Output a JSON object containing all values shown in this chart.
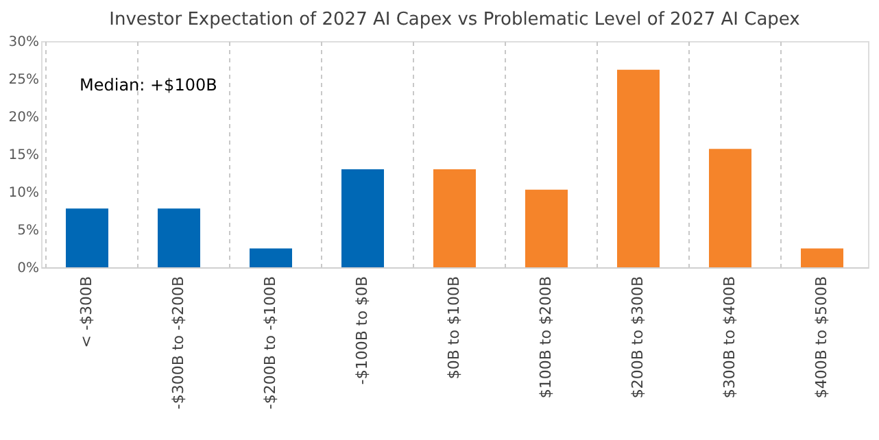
{
  "chart_data": {
    "type": "bar",
    "title": "Investor Expectation of 2027 AI Capex vs Problematic Level of 2027 AI Capex",
    "categories": [
      "< -$300B",
      "-$300B to -$200B",
      "-$200B to -$100B",
      "-$100B to $0B",
      "$0B to $100B",
      "$100B to $200B",
      "$200B to $300B",
      "$300B to $400B",
      "$400B to $500B"
    ],
    "values": [
      7.8,
      7.8,
      2.5,
      13.0,
      13.0,
      10.3,
      26.2,
      15.7,
      2.5
    ],
    "colors": [
      "#0068b5",
      "#0068b5",
      "#0068b5",
      "#0068b5",
      "#f5842a",
      "#f5842a",
      "#f5842a",
      "#f5842a",
      "#f5842a"
    ],
    "ylim": [
      0,
      30
    ],
    "yticks": [
      {
        "value": 0,
        "label": "0%"
      },
      {
        "value": 5,
        "label": "5%"
      },
      {
        "value": 10,
        "label": "10%"
      },
      {
        "value": 15,
        "label": "15%"
      },
      {
        "value": 20,
        "label": "20%"
      },
      {
        "value": 25,
        "label": "25%"
      },
      {
        "value": 30,
        "label": "30%"
      }
    ],
    "grid": "x",
    "annotations": [
      "Median: +$100B"
    ]
  }
}
